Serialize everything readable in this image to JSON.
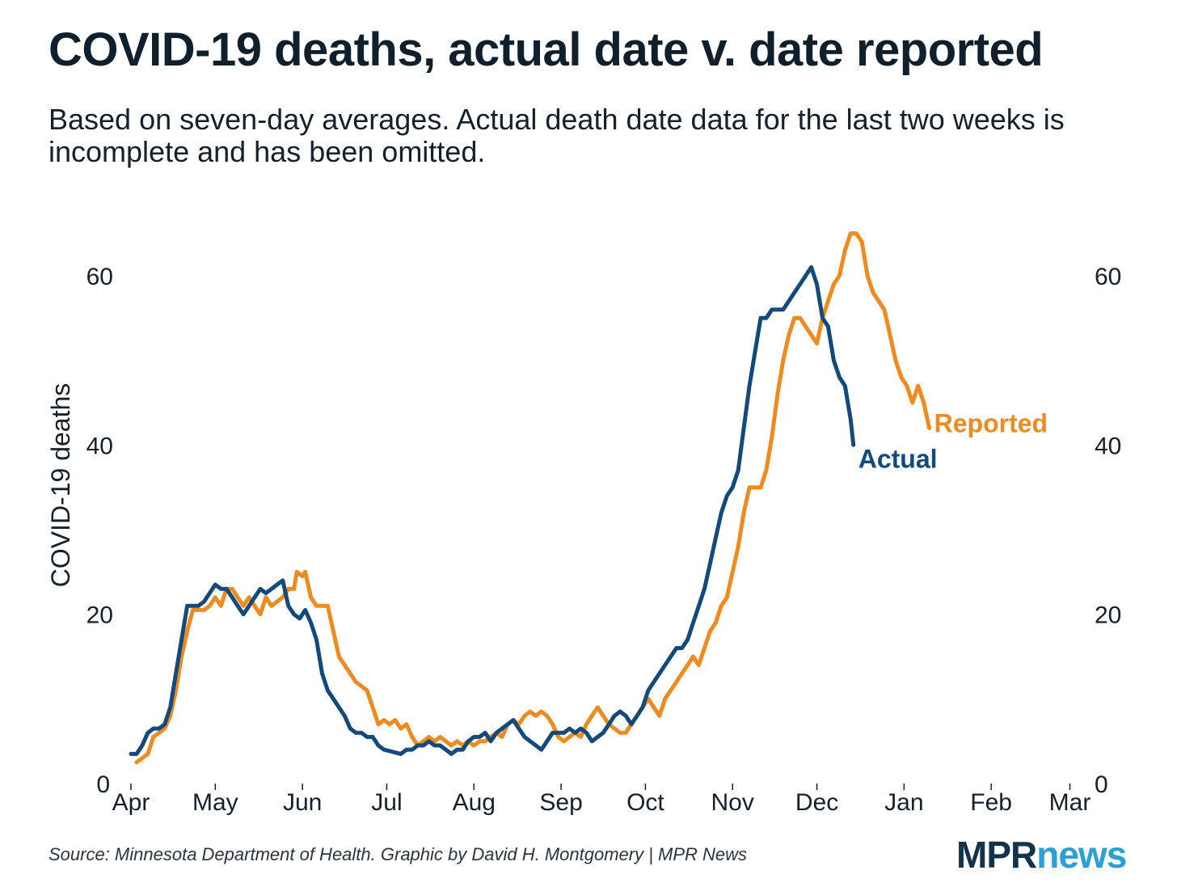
{
  "header": {
    "title": "COVID-19 deaths, actual date v. date reported",
    "subtitle": "Based on seven-day averages. Actual death date data for the last two weeks is incomplete and has been omitted."
  },
  "footer": {
    "source": "Source: Minnesota Department of Health. Graphic by David H. Montgomery | MPR News",
    "logo_part1": "MPR",
    "logo_part2": "news"
  },
  "colors": {
    "reported": "#ee8a1e",
    "actual": "#134a7c",
    "text": "#14202b"
  },
  "chart_data": {
    "type": "line",
    "title": "COVID-19 deaths, actual date v. date reported",
    "ylabel": "COVID-19 deaths",
    "xlabel": "",
    "ylim": [
      0,
      60
    ],
    "yticks": [
      0,
      20,
      40,
      60
    ],
    "x_unit": "days since Apr 1",
    "xlim": [
      0,
      335
    ],
    "x_ticks": [
      {
        "label": "Apr",
        "x": 0
      },
      {
        "label": "May",
        "x": 30
      },
      {
        "label": "Jun",
        "x": 61
      },
      {
        "label": "Jul",
        "x": 91
      },
      {
        "label": "Aug",
        "x": 122
      },
      {
        "label": "Sep",
        "x": 153
      },
      {
        "label": "Oct",
        "x": 183
      },
      {
        "label": "Nov",
        "x": 214
      },
      {
        "label": "Dec",
        "x": 244
      },
      {
        "label": "Jan",
        "x": 275
      },
      {
        "label": "Feb",
        "x": 306
      },
      {
        "label": "Mar",
        "x": 334
      }
    ],
    "series": [
      {
        "name": "Reported",
        "label": "Reported",
        "color": "#ee8a1e",
        "points": [
          [
            2,
            2.5
          ],
          [
            4,
            3
          ],
          [
            6,
            3.5
          ],
          [
            8,
            5.5
          ],
          [
            10,
            6
          ],
          [
            12,
            6.5
          ],
          [
            14,
            8
          ],
          [
            16,
            11
          ],
          [
            18,
            15
          ],
          [
            20,
            18
          ],
          [
            22,
            20.5
          ],
          [
            24,
            20.5
          ],
          [
            26,
            20.5
          ],
          [
            28,
            21
          ],
          [
            30,
            22
          ],
          [
            32,
            21
          ],
          [
            34,
            23
          ],
          [
            36,
            23
          ],
          [
            38,
            22
          ],
          [
            40,
            21
          ],
          [
            42,
            22
          ],
          [
            44,
            21
          ],
          [
            46,
            20
          ],
          [
            48,
            22
          ],
          [
            50,
            21
          ],
          [
            52,
            21.5
          ],
          [
            54,
            22
          ],
          [
            56,
            23
          ],
          [
            58,
            23
          ],
          [
            59,
            25
          ],
          [
            61,
            24.5
          ],
          [
            62,
            25
          ],
          [
            64,
            22
          ],
          [
            66,
            21
          ],
          [
            68,
            21
          ],
          [
            70,
            21
          ],
          [
            72,
            18
          ],
          [
            74,
            15
          ],
          [
            76,
            14
          ],
          [
            78,
            13
          ],
          [
            80,
            12
          ],
          [
            82,
            11.5
          ],
          [
            84,
            11
          ],
          [
            86,
            9
          ],
          [
            88,
            7
          ],
          [
            90,
            7.5
          ],
          [
            92,
            7
          ],
          [
            94,
            7.5
          ],
          [
            96,
            6.5
          ],
          [
            98,
            7
          ],
          [
            100,
            5.5
          ],
          [
            102,
            4.5
          ],
          [
            104,
            5
          ],
          [
            106,
            5.5
          ],
          [
            108,
            5
          ],
          [
            110,
            5.5
          ],
          [
            112,
            5
          ],
          [
            114,
            4.5
          ],
          [
            116,
            5
          ],
          [
            118,
            4.5
          ],
          [
            120,
            5
          ],
          [
            122,
            4.5
          ],
          [
            124,
            5
          ],
          [
            126,
            5
          ],
          [
            128,
            5.5
          ],
          [
            130,
            6
          ],
          [
            132,
            5.5
          ],
          [
            134,
            7
          ],
          [
            136,
            7.5
          ],
          [
            138,
            7
          ],
          [
            140,
            8
          ],
          [
            142,
            8.5
          ],
          [
            144,
            8
          ],
          [
            146,
            8.5
          ],
          [
            148,
            8
          ],
          [
            150,
            7
          ],
          [
            152,
            5.5
          ],
          [
            154,
            5
          ],
          [
            156,
            5.5
          ],
          [
            158,
            6
          ],
          [
            160,
            5.5
          ],
          [
            162,
            7
          ],
          [
            164,
            8
          ],
          [
            166,
            9
          ],
          [
            168,
            8
          ],
          [
            170,
            7
          ],
          [
            172,
            6.5
          ],
          [
            174,
            6
          ],
          [
            176,
            6
          ],
          [
            178,
            7
          ],
          [
            180,
            8
          ],
          [
            182,
            9
          ],
          [
            184,
            10
          ],
          [
            186,
            9
          ],
          [
            188,
            8
          ],
          [
            190,
            10
          ],
          [
            192,
            11
          ],
          [
            194,
            12
          ],
          [
            196,
            13
          ],
          [
            198,
            14
          ],
          [
            200,
            15
          ],
          [
            202,
            14
          ],
          [
            204,
            16
          ],
          [
            206,
            18
          ],
          [
            208,
            19
          ],
          [
            210,
            21
          ],
          [
            212,
            22
          ],
          [
            214,
            25
          ],
          [
            216,
            28
          ],
          [
            218,
            32
          ],
          [
            220,
            35
          ],
          [
            222,
            35
          ],
          [
            224,
            35
          ],
          [
            226,
            37
          ],
          [
            228,
            41
          ],
          [
            230,
            46
          ],
          [
            232,
            50
          ],
          [
            234,
            53
          ],
          [
            236,
            55
          ],
          [
            238,
            55
          ],
          [
            240,
            54
          ],
          [
            242,
            53
          ],
          [
            244,
            52
          ],
          [
            246,
            55
          ],
          [
            248,
            57
          ],
          [
            250,
            59
          ],
          [
            252,
            60
          ],
          [
            254,
            63
          ],
          [
            256,
            65
          ],
          [
            258,
            65
          ],
          [
            260,
            64
          ],
          [
            262,
            60
          ],
          [
            264,
            58
          ],
          [
            266,
            57
          ],
          [
            268,
            56
          ],
          [
            270,
            53
          ],
          [
            272,
            50
          ],
          [
            274,
            48
          ],
          [
            276,
            47
          ],
          [
            278,
            45
          ],
          [
            280,
            47
          ],
          [
            282,
            45
          ],
          [
            284,
            42
          ]
        ]
      },
      {
        "name": "Actual",
        "label": "Actual",
        "color": "#134a7c",
        "points": [
          [
            0,
            3.5
          ],
          [
            2,
            3.5
          ],
          [
            4,
            4.5
          ],
          [
            6,
            6
          ],
          [
            8,
            6.5
          ],
          [
            10,
            6.5
          ],
          [
            12,
            7
          ],
          [
            14,
            9
          ],
          [
            16,
            13
          ],
          [
            18,
            17
          ],
          [
            20,
            21
          ],
          [
            22,
            21
          ],
          [
            24,
            21
          ],
          [
            26,
            21.5
          ],
          [
            28,
            22.5
          ],
          [
            30,
            23.5
          ],
          [
            32,
            23
          ],
          [
            34,
            23
          ],
          [
            36,
            22
          ],
          [
            38,
            21
          ],
          [
            40,
            20
          ],
          [
            42,
            21
          ],
          [
            44,
            22
          ],
          [
            46,
            23
          ],
          [
            48,
            22.5
          ],
          [
            50,
            23
          ],
          [
            52,
            23.5
          ],
          [
            54,
            24
          ],
          [
            56,
            21
          ],
          [
            58,
            20
          ],
          [
            60,
            19.5
          ],
          [
            62,
            20.5
          ],
          [
            64,
            19
          ],
          [
            66,
            17
          ],
          [
            68,
            13
          ],
          [
            70,
            11
          ],
          [
            72,
            10
          ],
          [
            74,
            9
          ],
          [
            76,
            8
          ],
          [
            78,
            6.5
          ],
          [
            80,
            6
          ],
          [
            82,
            6
          ],
          [
            84,
            5.5
          ],
          [
            86,
            5.5
          ],
          [
            88,
            4.5
          ],
          [
            90,
            4
          ],
          [
            96,
            3.5
          ],
          [
            98,
            4
          ],
          [
            100,
            4
          ],
          [
            102,
            4.5
          ],
          [
            104,
            4.5
          ],
          [
            106,
            5
          ],
          [
            108,
            4.5
          ],
          [
            110,
            4.5
          ],
          [
            112,
            4
          ],
          [
            114,
            3.5
          ],
          [
            116,
            4
          ],
          [
            118,
            4
          ],
          [
            120,
            5
          ],
          [
            122,
            5.5
          ],
          [
            124,
            5.5
          ],
          [
            126,
            6
          ],
          [
            128,
            5
          ],
          [
            130,
            6
          ],
          [
            132,
            6.5
          ],
          [
            134,
            7
          ],
          [
            136,
            7.5
          ],
          [
            138,
            6.5
          ],
          [
            140,
            5.5
          ],
          [
            142,
            5
          ],
          [
            144,
            4.5
          ],
          [
            146,
            4
          ],
          [
            148,
            5
          ],
          [
            150,
            6
          ],
          [
            152,
            6
          ],
          [
            154,
            6
          ],
          [
            156,
            6.5
          ],
          [
            158,
            6
          ],
          [
            160,
            6.5
          ],
          [
            162,
            6
          ],
          [
            164,
            5
          ],
          [
            166,
            5.5
          ],
          [
            168,
            6
          ],
          [
            170,
            7
          ],
          [
            172,
            8
          ],
          [
            174,
            8.5
          ],
          [
            176,
            8
          ],
          [
            178,
            7
          ],
          [
            180,
            8
          ],
          [
            182,
            9
          ],
          [
            184,
            11
          ],
          [
            186,
            12
          ],
          [
            188,
            13
          ],
          [
            190,
            14
          ],
          [
            192,
            15
          ],
          [
            194,
            16
          ],
          [
            196,
            16
          ],
          [
            198,
            17
          ],
          [
            200,
            19
          ],
          [
            202,
            21
          ],
          [
            204,
            23
          ],
          [
            206,
            26
          ],
          [
            208,
            29
          ],
          [
            210,
            32
          ],
          [
            212,
            34
          ],
          [
            214,
            35
          ],
          [
            216,
            37
          ],
          [
            218,
            42
          ],
          [
            220,
            47
          ],
          [
            222,
            51
          ],
          [
            224,
            55
          ],
          [
            226,
            55
          ],
          [
            228,
            56
          ],
          [
            230,
            56
          ],
          [
            232,
            56
          ],
          [
            234,
            57
          ],
          [
            236,
            58
          ],
          [
            238,
            59
          ],
          [
            240,
            60
          ],
          [
            242,
            61
          ],
          [
            244,
            59
          ],
          [
            246,
            55
          ],
          [
            248,
            54
          ],
          [
            250,
            50
          ],
          [
            252,
            48
          ],
          [
            254,
            47
          ],
          [
            256,
            43
          ],
          [
            257,
            40
          ]
        ]
      }
    ]
  }
}
